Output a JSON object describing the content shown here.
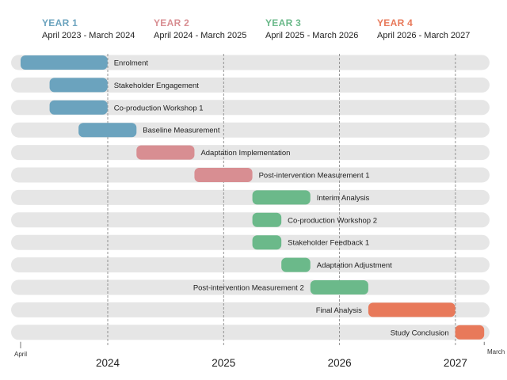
{
  "headers": [
    {
      "title": "YEAR 1",
      "range": "April 2023 - March 2024",
      "color": "#6ba3be"
    },
    {
      "title": "YEAR 2",
      "range": "April 2024 - March 2025",
      "color": "#d88e92"
    },
    {
      "title": "YEAR 3",
      "range": "April 2025 - March 2026",
      "color": "#6bb98a"
    },
    {
      "title": "YEAR 4",
      "range": "April 2026 - March 2027",
      "color": "#e8795a"
    }
  ],
  "chart_data": {
    "type": "gantt",
    "x_range": [
      "2023-04",
      "2027-03"
    ],
    "start_label": "April",
    "end_label": "March",
    "year_ticks": [
      "2024",
      "2025",
      "2026",
      "2027"
    ],
    "track_color": "#e6e6e6",
    "tasks": [
      {
        "name": "Enrolment",
        "start": "2023-04",
        "end": "2023-12",
        "year": 1
      },
      {
        "name": "Stakeholder Engagement",
        "start": "2023-07",
        "end": "2023-12",
        "year": 1
      },
      {
        "name": "Co-production Workshop 1",
        "start": "2023-07",
        "end": "2023-12",
        "year": 1
      },
      {
        "name": "Baseline Measurement",
        "start": "2023-10",
        "end": "2024-03",
        "year": 1
      },
      {
        "name": "Adaptation Implementation",
        "start": "2024-04",
        "end": "2024-09",
        "year": 2
      },
      {
        "name": "Post-intervention Measurement 1",
        "start": "2024-10",
        "end": "2025-03",
        "year": 2
      },
      {
        "name": "Interim Analysis",
        "start": "2025-04",
        "end": "2025-09",
        "year": 3
      },
      {
        "name": "Co-production Workshop 2",
        "start": "2025-04",
        "end": "2025-06",
        "year": 3
      },
      {
        "name": "Stakeholder Feedback 1",
        "start": "2025-04",
        "end": "2025-06",
        "year": 3
      },
      {
        "name": "Adaptation Adjustment",
        "start": "2025-07",
        "end": "2025-09",
        "year": 3
      },
      {
        "name": "Post-intervention Measurement 2",
        "start": "2025-10",
        "end": "2026-03",
        "year": 3
      },
      {
        "name": "Final Analysis",
        "start": "2026-04",
        "end": "2026-12",
        "year": 4
      },
      {
        "name": "Study Conclusion",
        "start": "2027-01",
        "end": "2027-03",
        "year": 4
      }
    ]
  }
}
